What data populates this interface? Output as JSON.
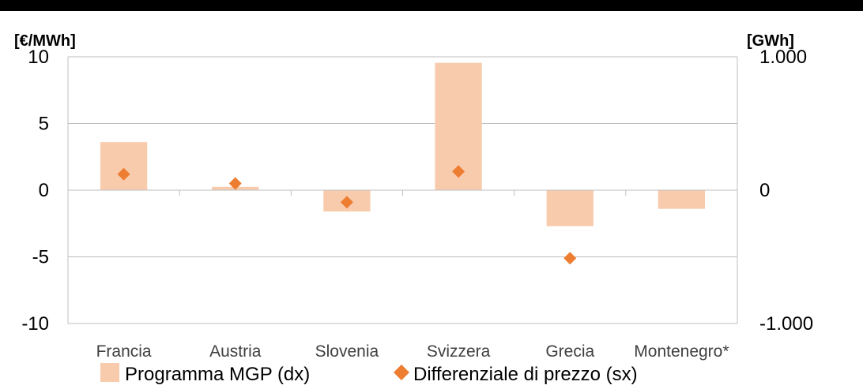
{
  "chart_data": {
    "type": "bar",
    "y_left_label": "[€/MWh]",
    "y_right_label": "[GWh]",
    "y_left_ticks": [
      "10",
      "5",
      "0",
      "-5",
      "-10"
    ],
    "y_right_ticks": [
      "1.000",
      "0",
      "-1.000"
    ],
    "ylim_left": [
      -10,
      10
    ],
    "ylim_right": [
      -1000,
      1000
    ],
    "categories": [
      "Francia",
      "Austria",
      "Slovenia",
      "Svizzera",
      "Grecia",
      "Montenegro*"
    ],
    "series": [
      {
        "name": "Programma MGP (dx)",
        "type": "bar",
        "axis": "right",
        "color": "#f8cbad",
        "values": [
          360,
          25,
          -160,
          955,
          -270,
          -140
        ]
      },
      {
        "name": "Differenziale di prezzo (sx)",
        "type": "scatter",
        "marker": "diamond",
        "axis": "left",
        "color": "#ed7d31",
        "values": [
          1.2,
          0.5,
          -0.9,
          1.4,
          -5.1,
          null
        ]
      }
    ],
    "grid": true,
    "legend_position": "bottom"
  }
}
